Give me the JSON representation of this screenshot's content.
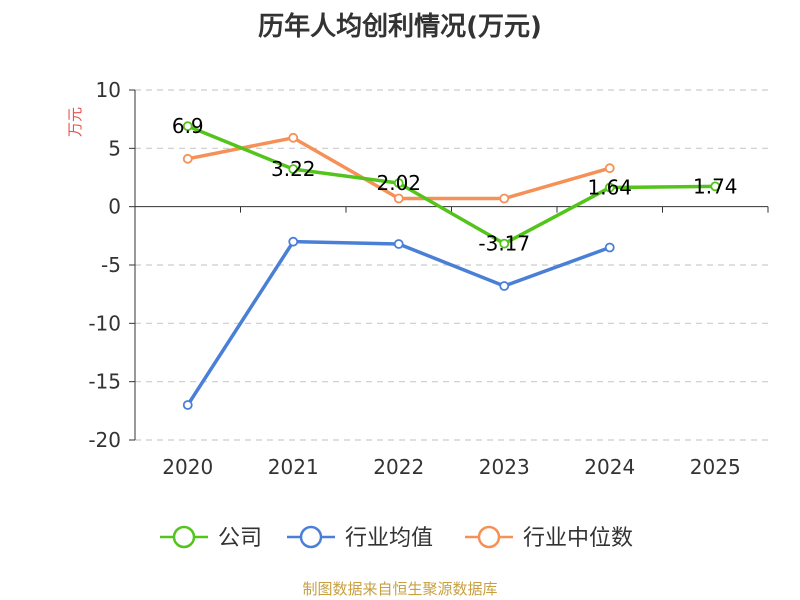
{
  "chart_data": {
    "type": "line",
    "title": "历年人均创利情况(万元)",
    "ylabel": "万元",
    "xlabel": "",
    "categories": [
      "2020",
      "2021",
      "2022",
      "2023",
      "2024",
      "2025"
    ],
    "yticks": [
      10,
      5,
      0,
      -5,
      -10,
      -15,
      -20
    ],
    "ylim": [
      -20,
      10
    ],
    "grid": true,
    "legend_position": "bottom",
    "series": [
      {
        "name": "公司",
        "color": "#52c41a",
        "values": [
          6.9,
          3.22,
          2.02,
          -3.17,
          1.64,
          1.74
        ],
        "labels": [
          "6.9",
          "3.22",
          "2.02",
          "-3.17",
          "1.64",
          "1.74"
        ]
      },
      {
        "name": "行业均值",
        "color": "#4a7fd8",
        "values": [
          -17.0,
          -3.0,
          -3.2,
          -6.8,
          -3.5,
          null
        ]
      },
      {
        "name": "行业中位数",
        "color": "#f59157",
        "values": [
          4.1,
          5.9,
          0.7,
          0.7,
          3.3,
          null
        ]
      }
    ],
    "source": "制图数据来自恒生聚源数据库",
    "colors": {
      "title": "#333333",
      "unit": "#e8524a",
      "source": "#c8a042",
      "grid": "#cccccc",
      "axis": "#333333"
    }
  }
}
